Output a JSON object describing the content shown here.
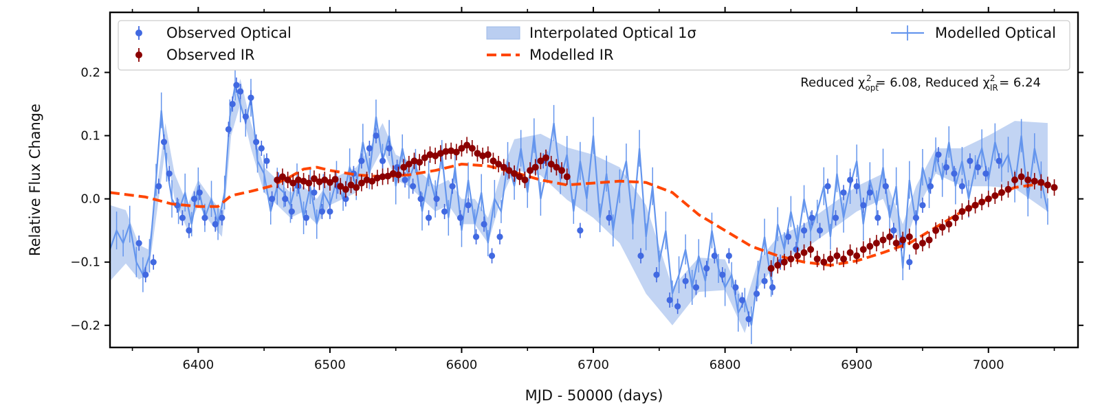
{
  "chart_data": {
    "type": "line",
    "xlabel": "MJD - 50000 (days)",
    "ylabel": "Relative Flux Change",
    "xlim": [
      6333,
      7068
    ],
    "ylim": [
      -0.235,
      0.295
    ],
    "xticks": [
      6400,
      6500,
      6600,
      6700,
      6800,
      6900,
      7000
    ],
    "xtick_labels": [
      "6400",
      "6500",
      "6600",
      "6700",
      "6800",
      "6900",
      "7000"
    ],
    "yticks": [
      -0.2,
      -0.1,
      0.0,
      0.1,
      0.2
    ],
    "ytick_labels": [
      "−0.2",
      "−0.1",
      "0.0",
      "0.1",
      "0.2"
    ],
    "legend": {
      "placement": "top",
      "entries": [
        {
          "label": "Observed Optical",
          "kind": "errorbar-marker",
          "color": "#4169e1"
        },
        {
          "label": "Observed IR",
          "kind": "errorbar-marker",
          "color": "#8b0000"
        },
        {
          "label": "Interpolated Optical 1σ",
          "kind": "band",
          "color": "#aec6ef"
        },
        {
          "label": "Modelled IR",
          "kind": "dashed-line",
          "color": "#ff4500"
        },
        {
          "label": "Modelled Optical",
          "kind": "errorbar-line",
          "color": "#6495ed"
        }
      ]
    },
    "annotation": {
      "prefix": "Reduced χ",
      "sub1": "opt",
      "sup1": "2",
      "val1": " = 6.08, Reduced χ",
      "sub2": "IR",
      "sup2": "2",
      "val2": " = 6.24"
    },
    "interp_band": {
      "name": "Interpolated Optical 1σ",
      "center": [
        [
          6333,
          -0.07
        ],
        [
          6345,
          -0.06
        ],
        [
          6355,
          -0.1
        ],
        [
          6362,
          -0.1
        ],
        [
          6370,
          0.02
        ],
        [
          6375,
          0.1
        ],
        [
          6382,
          0.02
        ],
        [
          6392,
          -0.03
        ],
        [
          6400,
          0.01
        ],
        [
          6410,
          -0.02
        ],
        [
          6418,
          -0.04
        ],
        [
          6425,
          0.12
        ],
        [
          6432,
          0.17
        ],
        [
          6440,
          0.1
        ],
        [
          6450,
          0.03
        ],
        [
          6460,
          0.01
        ],
        [
          6470,
          -0.01
        ],
        [
          6480,
          0.0
        ],
        [
          6490,
          -0.02
        ],
        [
          6500,
          0.01
        ],
        [
          6510,
          0.02
        ],
        [
          6520,
          0.03
        ],
        [
          6530,
          0.06
        ],
        [
          6540,
          0.1
        ],
        [
          6550,
          0.05
        ],
        [
          6560,
          0.04
        ],
        [
          6570,
          0.02
        ],
        [
          6580,
          0.0
        ],
        [
          6590,
          0.01
        ],
        [
          6600,
          -0.02
        ],
        [
          6610,
          -0.02
        ],
        [
          6620,
          -0.05
        ],
        [
          6630,
          0.02
        ],
        [
          6640,
          0.07
        ],
        [
          6660,
          0.07
        ],
        [
          6680,
          0.04
        ],
        [
          6700,
          0.02
        ],
        [
          6720,
          -0.01
        ],
        [
          6740,
          -0.08
        ],
        [
          6760,
          -0.17
        ],
        [
          6780,
          -0.12
        ],
        [
          6800,
          -0.12
        ],
        [
          6815,
          -0.19
        ],
        [
          6825,
          -0.12
        ],
        [
          6840,
          -0.08
        ],
        [
          6860,
          -0.06
        ],
        [
          6880,
          -0.03
        ],
        [
          6900,
          0.0
        ],
        [
          6920,
          0.02
        ],
        [
          6935,
          -0.06
        ],
        [
          6945,
          0.0
        ],
        [
          6960,
          0.06
        ],
        [
          6980,
          0.05
        ],
        [
          7000,
          0.06
        ],
        [
          7020,
          0.07
        ],
        [
          7045,
          0.05
        ]
      ],
      "half_width": [
        [
          6333,
          0.06
        ],
        [
          6360,
          0.02
        ],
        [
          6460,
          0.02
        ],
        [
          6630,
          0.02
        ],
        [
          6700,
          0.05
        ],
        [
          6740,
          0.07
        ],
        [
          6760,
          0.03
        ],
        [
          6830,
          0.02
        ],
        [
          6960,
          0.02
        ],
        [
          7000,
          0.04
        ],
        [
          7045,
          0.07
        ]
      ]
    },
    "modelled_optical": {
      "name": "Modelled Optical",
      "x": [
        6333,
        6338,
        6343,
        6348,
        6353,
        6358,
        6363,
        6368,
        6372,
        6376,
        6380,
        6385,
        6390,
        6395,
        6400,
        6405,
        6410,
        6415,
        6420,
        6424,
        6428,
        6432,
        6436,
        6440,
        6445,
        6450,
        6455,
        6460,
        6465,
        6470,
        6475,
        6480,
        6485,
        6490,
        6495,
        6500,
        6505,
        6510,
        6515,
        6520,
        6525,
        6530,
        6535,
        6540,
        6545,
        6550,
        6555,
        6560,
        6565,
        6570,
        6575,
        6580,
        6585,
        6590,
        6595,
        6600,
        6605,
        6610,
        6615,
        6620,
        6625,
        6630,
        6635,
        6640,
        6645,
        6650,
        6655,
        6660,
        6665,
        6670,
        6675,
        6680,
        6685,
        6690,
        6695,
        6700,
        6705,
        6710,
        6715,
        6720,
        6725,
        6730,
        6735,
        6740,
        6745,
        6750,
        6755,
        6760,
        6765,
        6770,
        6775,
        6780,
        6785,
        6790,
        6795,
        6800,
        6805,
        6810,
        6815,
        6820,
        6825,
        6830,
        6835,
        6840,
        6845,
        6850,
        6855,
        6860,
        6865,
        6870,
        6875,
        6880,
        6885,
        6890,
        6895,
        6900,
        6905,
        6910,
        6915,
        6920,
        6925,
        6930,
        6935,
        6940,
        6945,
        6950,
        6955,
        6960,
        6965,
        6970,
        6975,
        6980,
        6985,
        6990,
        6995,
        7000,
        7005,
        7010,
        7015,
        7020,
        7025,
        7030,
        7035,
        7040,
        7045
      ],
      "y": [
        -0.08,
        -0.05,
        -0.07,
        -0.04,
        -0.1,
        -0.12,
        -0.09,
        0.03,
        0.14,
        0.05,
        0.0,
        -0.02,
        0.01,
        -0.04,
        0.02,
        -0.03,
        0.0,
        -0.04,
        0.01,
        0.13,
        0.18,
        0.15,
        0.12,
        0.16,
        0.06,
        0.04,
        -0.02,
        0.02,
        0.01,
        -0.01,
        0.03,
        -0.03,
        0.02,
        -0.04,
        0.01,
        -0.01,
        0.03,
        0.0,
        0.05,
        0.02,
        0.09,
        0.04,
        0.13,
        0.06,
        0.1,
        0.02,
        0.08,
        0.03,
        0.06,
        -0.02,
        0.04,
        0.0,
        0.07,
        -0.03,
        0.05,
        -0.05,
        0.03,
        -0.04,
        0.01,
        -0.07,
        0.0,
        -0.02,
        0.06,
        0.02,
        0.08,
        0.01,
        0.1,
        0.0,
        0.05,
        0.12,
        0.03,
        0.07,
        -0.02,
        0.06,
        0.0,
        0.1,
        -0.03,
        0.04,
        -0.05,
        0.02,
        0.06,
        -0.04,
        0.08,
        -0.06,
        0.02,
        -0.1,
        -0.05,
        -0.15,
        -0.12,
        -0.08,
        -0.14,
        -0.09,
        -0.13,
        -0.05,
        -0.11,
        -0.14,
        -0.12,
        -0.18,
        -0.16,
        -0.2,
        -0.12,
        -0.06,
        -0.13,
        -0.04,
        -0.08,
        -0.02,
        -0.07,
        0.0,
        -0.05,
        -0.02,
        0.02,
        -0.06,
        0.04,
        -0.03,
        0.02,
        0.06,
        -0.04,
        0.03,
        -0.01,
        0.05,
        -0.03,
        0.02,
        -0.11,
        0.03,
        -0.04,
        0.05,
        0.01,
        0.07,
        0.03,
        0.09,
        0.02,
        0.06,
        0.0,
        0.05,
        0.08,
        0.03,
        0.09,
        0.05,
        0.07,
        0.02,
        0.1,
        0.0,
        0.08,
        0.03,
        -0.02
      ]
    },
    "observed_optical": {
      "name": "Observed Optical",
      "x": [
        6355,
        6360,
        6366,
        6370,
        6374,
        6378,
        6384,
        6388,
        6393,
        6397,
        6401,
        6405,
        6413,
        6418,
        6423,
        6426,
        6429,
        6432,
        6436,
        6440,
        6444,
        6448,
        6452,
        6456,
        6461,
        6466,
        6471,
        6476,
        6482,
        6488,
        6494,
        6500,
        6506,
        6512,
        6518,
        6524,
        6530,
        6535,
        6540,
        6545,
        6551,
        6557,
        6563,
        6569,
        6575,
        6581,
        6587,
        6593,
        6599,
        6605,
        6611,
        6617,
        6623,
        6629,
        6640,
        6662,
        6690,
        6712,
        6736,
        6748,
        6758,
        6764,
        6770,
        6778,
        6786,
        6792,
        6798,
        6803,
        6808,
        6813,
        6818,
        6824,
        6830,
        6836,
        6842,
        6848,
        6854,
        6860,
        6866,
        6872,
        6878,
        6884,
        6890,
        6895,
        6900,
        6905,
        6910,
        6916,
        6922,
        6928,
        6934,
        6940,
        6945,
        6950,
        6956,
        6962,
        6968,
        6974,
        6980,
        6986,
        6992,
        6998,
        7008
      ],
      "y": [
        -0.07,
        -0.12,
        -0.1,
        0.02,
        0.09,
        0.04,
        -0.01,
        -0.03,
        -0.05,
        0.0,
        0.01,
        -0.03,
        -0.04,
        -0.03,
        0.11,
        0.15,
        0.18,
        0.17,
        0.13,
        0.16,
        0.09,
        0.08,
        0.06,
        0.0,
        0.03,
        0.0,
        -0.02,
        0.02,
        -0.03,
        0.01,
        -0.02,
        -0.02,
        0.02,
        0.0,
        0.04,
        0.06,
        0.08,
        0.1,
        0.06,
        0.08,
        0.05,
        0.03,
        0.02,
        0.0,
        -0.03,
        0.0,
        -0.02,
        0.02,
        -0.03,
        -0.01,
        -0.06,
        -0.04,
        -0.09,
        -0.06,
        0.04,
        0.06,
        -0.05,
        -0.03,
        -0.09,
        -0.12,
        -0.16,
        -0.17,
        -0.13,
        -0.14,
        -0.11,
        -0.09,
        -0.12,
        -0.09,
        -0.14,
        -0.16,
        -0.19,
        -0.15,
        -0.13,
        -0.14,
        -0.1,
        -0.06,
        -0.08,
        -0.05,
        -0.03,
        -0.05,
        0.02,
        -0.03,
        0.01,
        0.03,
        0.02,
        -0.01,
        0.01,
        -0.03,
        0.02,
        -0.05,
        -0.07,
        -0.1,
        -0.03,
        -0.01,
        0.02,
        0.07,
        0.05,
        0.04,
        0.02,
        0.06,
        0.05,
        0.04,
        0.06
      ],
      "err": 0.012
    },
    "observed_ir": {
      "name": "Observed IR",
      "x": [
        6460,
        6464,
        6468,
        6472,
        6476,
        6480,
        6484,
        6488,
        6492,
        6496,
        6500,
        6504,
        6508,
        6512,
        6516,
        6520,
        6524,
        6528,
        6532,
        6536,
        6540,
        6544,
        6548,
        6552,
        6556,
        6560,
        6564,
        6568,
        6572,
        6576,
        6580,
        6584,
        6588,
        6592,
        6596,
        6600,
        6604,
        6608,
        6612,
        6616,
        6620,
        6624,
        6628,
        6632,
        6636,
        6640,
        6644,
        6648,
        6652,
        6656,
        6660,
        6664,
        6668,
        6672,
        6676,
        6680,
        6835,
        6840,
        6845,
        6850,
        6855,
        6860,
        6865,
        6870,
        6875,
        6880,
        6885,
        6890,
        6895,
        6900,
        6905,
        6910,
        6915,
        6920,
        6925,
        6930,
        6935,
        6940,
        6945,
        6950,
        6955,
        6960,
        6965,
        6970,
        6975,
        6980,
        6985,
        6990,
        6995,
        7000,
        7005,
        7010,
        7015,
        7020,
        7025,
        7030,
        7035,
        7040,
        7045,
        7050
      ],
      "y": [
        0.03,
        0.035,
        0.03,
        0.025,
        0.03,
        0.028,
        0.025,
        0.032,
        0.027,
        0.03,
        0.026,
        0.031,
        0.02,
        0.015,
        0.022,
        0.018,
        0.025,
        0.03,
        0.028,
        0.033,
        0.035,
        0.036,
        0.04,
        0.038,
        0.05,
        0.055,
        0.06,
        0.058,
        0.065,
        0.07,
        0.068,
        0.072,
        0.075,
        0.076,
        0.074,
        0.08,
        0.085,
        0.08,
        0.072,
        0.068,
        0.07,
        0.06,
        0.055,
        0.05,
        0.045,
        0.04,
        0.035,
        0.03,
        0.045,
        0.05,
        0.06,
        0.065,
        0.055,
        0.05,
        0.045,
        0.035,
        -0.11,
        -0.105,
        -0.1,
        -0.095,
        -0.09,
        -0.085,
        -0.08,
        -0.095,
        -0.1,
        -0.095,
        -0.09,
        -0.095,
        -0.085,
        -0.09,
        -0.08,
        -0.075,
        -0.07,
        -0.065,
        -0.06,
        -0.07,
        -0.065,
        -0.06,
        -0.075,
        -0.07,
        -0.065,
        -0.05,
        -0.045,
        -0.04,
        -0.03,
        -0.02,
        -0.015,
        -0.01,
        -0.005,
        0.0,
        0.005,
        0.01,
        0.015,
        0.03,
        0.035,
        0.03,
        0.028,
        0.026,
        0.022,
        0.018
      ],
      "err": 0.013
    },
    "modelled_ir": {
      "name": "Modelled IR",
      "x": [
        6333,
        6360,
        6380,
        6400,
        6415,
        6425,
        6440,
        6455,
        6470,
        6480,
        6490,
        6500,
        6520,
        6540,
        6560,
        6580,
        6600,
        6620,
        6640,
        6660,
        6680,
        6700,
        6720,
        6740,
        6760,
        6780,
        6800,
        6820,
        6840,
        6860,
        6880,
        6900,
        6920,
        6940,
        6960,
        6980,
        7000,
        7020,
        7040,
        7050
      ],
      "y": [
        0.01,
        0.003,
        -0.008,
        -0.012,
        -0.012,
        0.005,
        0.012,
        0.02,
        0.035,
        0.047,
        0.05,
        0.045,
        0.038,
        0.035,
        0.038,
        0.045,
        0.055,
        0.052,
        0.042,
        0.03,
        0.022,
        0.025,
        0.028,
        0.026,
        0.01,
        -0.025,
        -0.05,
        -0.075,
        -0.09,
        -0.1,
        -0.105,
        -0.098,
        -0.085,
        -0.07,
        -0.045,
        -0.02,
        0.0,
        0.018,
        0.024,
        0.02
      ]
    }
  }
}
